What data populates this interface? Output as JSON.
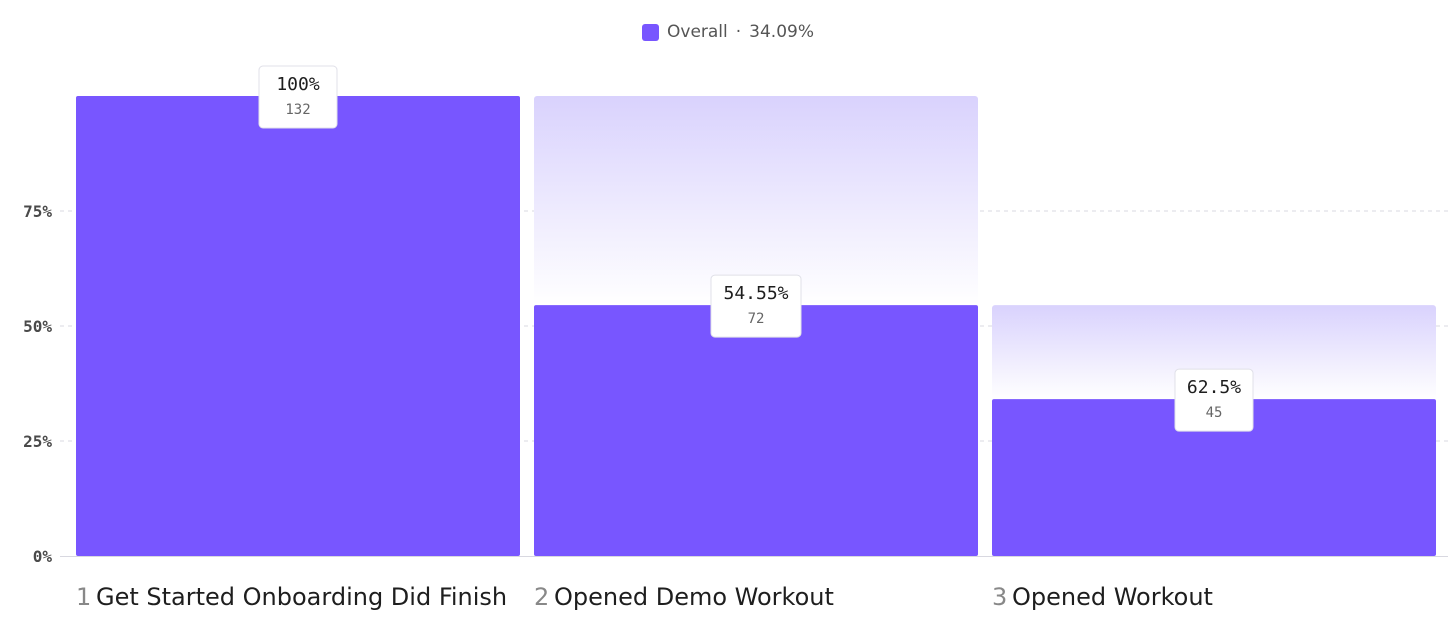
{
  "legend": {
    "label": "Overall",
    "separator": "·",
    "value": "34.09%",
    "color": "#7856ff"
  },
  "chart_data": {
    "type": "bar",
    "ylim": [
      0,
      1
    ],
    "yticks": [
      0,
      0.25,
      0.5,
      0.75
    ],
    "ytick_labels": [
      "0%",
      "25%",
      "50%",
      "75%"
    ],
    "grid": true,
    "legend_position": "top-center",
    "colors": {
      "bar": "#7856ff",
      "dropoff_top": "#d9d2fd",
      "dropoff_bottom": "#ffffff"
    },
    "steps": [
      {
        "number": "1",
        "name": "Get Started Onboarding Did Finish",
        "overall": 1.0,
        "previous": 1.0,
        "conversion_label": "100%",
        "count": "132"
      },
      {
        "number": "2",
        "name": "Opened Demo Workout",
        "overall": 0.5455,
        "previous": 1.0,
        "conversion_label": "54.55%",
        "count": "72"
      },
      {
        "number": "3",
        "name": "Opened Workout",
        "overall": 0.3409,
        "previous": 0.5455,
        "conversion_label": "62.5%",
        "count": "45"
      }
    ]
  }
}
